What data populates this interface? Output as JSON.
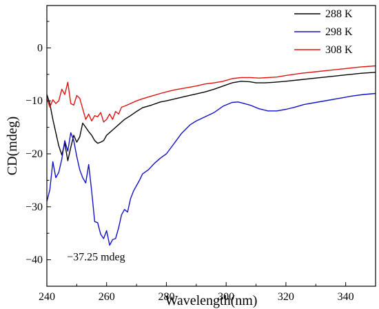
{
  "chart_data": {
    "type": "line",
    "xlabel": "Wavelength(nm)",
    "ylabel": "CD(mdeg)",
    "xlim": [
      240,
      350
    ],
    "ylim": [
      -45,
      8
    ],
    "xticks": [
      240,
      260,
      280,
      300,
      320,
      340
    ],
    "yticks": [
      0,
      -10,
      -20,
      -30,
      -40
    ],
    "yticks_display": [
      "0",
      "−10",
      "−20",
      "−30",
      "−40"
    ],
    "grid": false,
    "legend_position": "top-right",
    "annotations": [
      {
        "text": "−37.25 mdeg",
        "x": 261,
        "y": -37.25
      }
    ],
    "series": [
      {
        "name": "288 K",
        "color": "#000000",
        "points": [
          [
            240,
            -8.8
          ],
          [
            241,
            -10.5
          ],
          [
            242,
            -13.5
          ],
          [
            243,
            -16.0
          ],
          [
            244,
            -18.5
          ],
          [
            245,
            -20.2
          ],
          [
            246,
            -18.0
          ],
          [
            247,
            -21.3
          ],
          [
            248,
            -18.8
          ],
          [
            249,
            -16.5
          ],
          [
            250,
            -17.8
          ],
          [
            251,
            -16.8
          ],
          [
            252,
            -14.2
          ],
          [
            253,
            -15.0
          ],
          [
            254,
            -15.8
          ],
          [
            255,
            -16.5
          ],
          [
            256,
            -17.5
          ],
          [
            257,
            -18.0
          ],
          [
            258,
            -17.8
          ],
          [
            259,
            -17.5
          ],
          [
            260,
            -16.5
          ],
          [
            261,
            -16.0
          ],
          [
            262,
            -15.5
          ],
          [
            263,
            -15.0
          ],
          [
            264,
            -14.5
          ],
          [
            265,
            -14.0
          ],
          [
            266,
            -13.5
          ],
          [
            268,
            -12.8
          ],
          [
            270,
            -12.0
          ],
          [
            272,
            -11.3
          ],
          [
            275,
            -10.8
          ],
          [
            278,
            -10.2
          ],
          [
            280,
            -10.0
          ],
          [
            283,
            -9.6
          ],
          [
            286,
            -9.2
          ],
          [
            290,
            -8.7
          ],
          [
            293,
            -8.3
          ],
          [
            296,
            -7.8
          ],
          [
            299,
            -7.2
          ],
          [
            302,
            -6.6
          ],
          [
            305,
            -6.3
          ],
          [
            308,
            -6.4
          ],
          [
            310,
            -6.6
          ],
          [
            313,
            -6.6
          ],
          [
            316,
            -6.5
          ],
          [
            320,
            -6.3
          ],
          [
            325,
            -6.0
          ],
          [
            330,
            -5.7
          ],
          [
            335,
            -5.4
          ],
          [
            340,
            -5.1
          ],
          [
            345,
            -4.8
          ],
          [
            350,
            -4.6
          ]
        ]
      },
      {
        "name": "298 K",
        "color": "#1010c8",
        "points": [
          [
            240,
            -29.0
          ],
          [
            241,
            -26.8
          ],
          [
            242,
            -21.5
          ],
          [
            243,
            -24.5
          ],
          [
            244,
            -23.5
          ],
          [
            245,
            -21.0
          ],
          [
            246,
            -17.5
          ],
          [
            247,
            -19.5
          ],
          [
            248,
            -16.0
          ],
          [
            249,
            -17.5
          ],
          [
            250,
            -20.5
          ],
          [
            251,
            -23.0
          ],
          [
            252,
            -24.5
          ],
          [
            253,
            -25.5
          ],
          [
            254,
            -22.0
          ],
          [
            255,
            -27.0
          ],
          [
            256,
            -32.8
          ],
          [
            257,
            -33.0
          ],
          [
            258,
            -35.2
          ],
          [
            259,
            -36.0
          ],
          [
            260,
            -34.5
          ],
          [
            261,
            -37.25
          ],
          [
            262,
            -36.2
          ],
          [
            263,
            -36.0
          ],
          [
            264,
            -34.0
          ],
          [
            265,
            -31.5
          ],
          [
            266,
            -30.5
          ],
          [
            267,
            -31.0
          ],
          [
            268,
            -28.5
          ],
          [
            269,
            -27.0
          ],
          [
            270,
            -26.0
          ],
          [
            271,
            -25.0
          ],
          [
            272,
            -23.8
          ],
          [
            274,
            -23.0
          ],
          [
            276,
            -21.8
          ],
          [
            278,
            -20.8
          ],
          [
            280,
            -20.0
          ],
          [
            282,
            -18.5
          ],
          [
            285,
            -16.2
          ],
          [
            288,
            -14.5
          ],
          [
            290,
            -13.8
          ],
          [
            293,
            -13.0
          ],
          [
            296,
            -12.2
          ],
          [
            299,
            -11.0
          ],
          [
            302,
            -10.3
          ],
          [
            304,
            -10.2
          ],
          [
            306,
            -10.5
          ],
          [
            308,
            -10.8
          ],
          [
            311,
            -11.5
          ],
          [
            314,
            -11.9
          ],
          [
            317,
            -11.9
          ],
          [
            320,
            -11.6
          ],
          [
            323,
            -11.2
          ],
          [
            326,
            -10.7
          ],
          [
            330,
            -10.3
          ],
          [
            334,
            -9.9
          ],
          [
            338,
            -9.5
          ],
          [
            342,
            -9.1
          ],
          [
            346,
            -8.8
          ],
          [
            350,
            -8.6
          ]
        ]
      },
      {
        "name": "308 K",
        "color": "#e01010",
        "points": [
          [
            240,
            -9.5
          ],
          [
            241,
            -11.2
          ],
          [
            242,
            -9.8
          ],
          [
            243,
            -10.5
          ],
          [
            244,
            -10.0
          ],
          [
            245,
            -7.8
          ],
          [
            246,
            -8.8
          ],
          [
            247,
            -6.5
          ],
          [
            248,
            -10.5
          ],
          [
            249,
            -10.8
          ],
          [
            250,
            -9.0
          ],
          [
            251,
            -9.5
          ],
          [
            252,
            -11.5
          ],
          [
            253,
            -13.5
          ],
          [
            254,
            -12.5
          ],
          [
            255,
            -13.8
          ],
          [
            256,
            -12.8
          ],
          [
            257,
            -13.0
          ],
          [
            258,
            -12.2
          ],
          [
            259,
            -14.0
          ],
          [
            260,
            -13.5
          ],
          [
            261,
            -12.5
          ],
          [
            262,
            -13.5
          ],
          [
            263,
            -12.0
          ],
          [
            264,
            -12.5
          ],
          [
            265,
            -11.2
          ],
          [
            266,
            -11.0
          ],
          [
            268,
            -10.5
          ],
          [
            270,
            -10.0
          ],
          [
            272,
            -9.6
          ],
          [
            275,
            -9.1
          ],
          [
            278,
            -8.6
          ],
          [
            280,
            -8.3
          ],
          [
            283,
            -7.9
          ],
          [
            286,
            -7.6
          ],
          [
            290,
            -7.2
          ],
          [
            293,
            -6.8
          ],
          [
            296,
            -6.6
          ],
          [
            299,
            -6.3
          ],
          [
            302,
            -5.8
          ],
          [
            305,
            -5.6
          ],
          [
            308,
            -5.6
          ],
          [
            311,
            -5.7
          ],
          [
            314,
            -5.6
          ],
          [
            317,
            -5.5
          ],
          [
            320,
            -5.2
          ],
          [
            325,
            -4.8
          ],
          [
            330,
            -4.5
          ],
          [
            335,
            -4.2
          ],
          [
            340,
            -3.9
          ],
          [
            345,
            -3.6
          ],
          [
            350,
            -3.4
          ]
        ]
      }
    ]
  }
}
